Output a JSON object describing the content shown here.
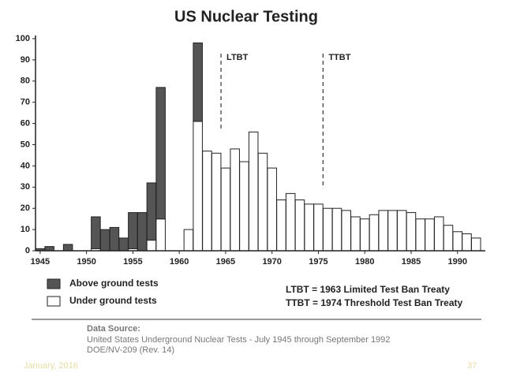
{
  "chart_data": {
    "type": "stacked_bar",
    "title": "US Nuclear Testing",
    "x": [
      1945,
      1946,
      1947,
      1948,
      1949,
      1950,
      1951,
      1952,
      1953,
      1954,
      1955,
      1956,
      1957,
      1958,
      1959,
      1960,
      1961,
      1962,
      1963,
      1964,
      1965,
      1966,
      1967,
      1968,
      1969,
      1970,
      1971,
      1972,
      1973,
      1974,
      1975,
      1976,
      1977,
      1978,
      1979,
      1980,
      1981,
      1982,
      1983,
      1984,
      1985,
      1986,
      1987,
      1988,
      1989,
      1990,
      1991,
      1992
    ],
    "series": [
      {
        "name": "Under ground tests",
        "color": "#ffffff",
        "values": [
          0,
          0,
          0,
          0,
          0,
          0,
          1,
          0,
          0,
          0,
          1,
          0,
          5,
          15,
          0,
          0,
          10,
          61,
          47,
          46,
          39,
          48,
          42,
          56,
          46,
          39,
          24,
          27,
          24,
          22,
          22,
          20,
          20,
          19,
          16,
          15,
          17,
          19,
          19,
          19,
          18,
          15,
          15,
          16,
          12,
          9,
          8,
          6
        ]
      },
      {
        "name": "Above ground tests",
        "color": "#555555",
        "values": [
          1,
          2,
          0,
          3,
          0,
          0,
          15,
          10,
          11,
          6,
          17,
          18,
          27,
          62,
          0,
          0,
          0,
          37,
          0,
          0,
          0,
          0,
          0,
          0,
          0,
          0,
          0,
          0,
          0,
          0,
          0,
          0,
          0,
          0,
          0,
          0,
          0,
          0,
          0,
          0,
          0,
          0,
          0,
          0,
          0,
          0,
          0,
          0
        ]
      }
    ],
    "xlim": [
      1944.5,
      1993
    ],
    "xticks": [
      1945,
      1950,
      1955,
      1960,
      1965,
      1970,
      1975,
      1980,
      1985,
      1990
    ],
    "ylim": [
      0,
      100
    ],
    "yticks": [
      0,
      10,
      20,
      30,
      40,
      50,
      60,
      70,
      80,
      90,
      100
    ],
    "annotations": [
      {
        "text": "LTBT",
        "x": 1964.5
      },
      {
        "text": "TTBT",
        "x": 1975.5
      }
    ],
    "notes": [
      "LTBT = 1963 Limited Test Ban Treaty",
      "TTBT = 1974 Threshold Test Ban Treaty"
    ],
    "source": [
      "Data Source:",
      "United States Underground Nuclear Tests - July 1945 through September 1992",
      "DOE/NV-209 (Rev. 14)"
    ],
    "footer": {
      "date": "January, 2016",
      "page": "37"
    }
  }
}
